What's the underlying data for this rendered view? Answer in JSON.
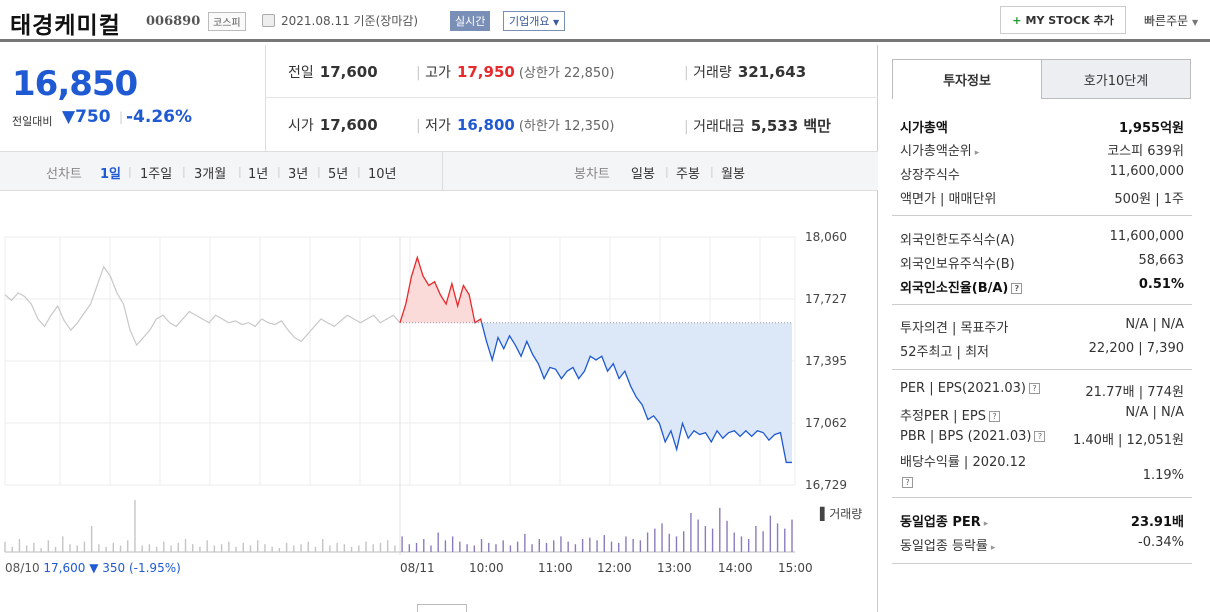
{
  "header": {
    "company": "태경케미컬",
    "code": "006890",
    "market": "코스피",
    "date": "2021.08.11 기준(장마감)",
    "realtime": "실시간",
    "company_info": "기업개요",
    "mystock": "MY STOCK 추가",
    "quick_order": "빠른주문"
  },
  "price": {
    "current": "16,850",
    "change_label": "전일대비",
    "change": "750",
    "change_pct": "-4.26%"
  },
  "stats": {
    "prev_label": "전일",
    "prev": "17,600",
    "high_label": "고가",
    "high": "17,950",
    "upper_limit": "(상한가 22,850)",
    "volume_label": "거래량",
    "volume": "321,643",
    "open_label": "시가",
    "open": "17,600",
    "low_label": "저가",
    "low": "16,800",
    "lower_limit": "(하한가 12,350)",
    "amount_label": "거래대금",
    "amount": "5,533 백만"
  },
  "periods": {
    "line_label": "선차트",
    "line_items": [
      "1일",
      "1주일",
      "3개월",
      "1년",
      "3년",
      "5년",
      "10년"
    ],
    "candle_label": "봉차트",
    "candle_items": [
      "일봉",
      "주봉",
      "월봉"
    ]
  },
  "chart_data": {
    "type": "line",
    "y_ticks": [
      "18,060",
      "17,727",
      "17,395",
      "17,062",
      "16,729"
    ],
    "ylim": [
      16729,
      18060
    ],
    "x_ticks": [
      "08/11",
      "10:00",
      "11:00",
      "12:00",
      "13:00",
      "14:00",
      "15:00"
    ],
    "reference": 17600,
    "volume_label": "거래량",
    "prev_day": {
      "date": "08/10",
      "close": "17,600",
      "change": "▼ 350",
      "change_pct": "(-1.95%)",
      "values": [
        17750,
        17720,
        17760,
        17740,
        17700,
        17620,
        17580,
        17640,
        17690,
        17610,
        17560,
        17600,
        17650,
        17700,
        17800,
        17900,
        17850,
        17760,
        17700,
        17560,
        17480,
        17520,
        17560,
        17620,
        17640,
        17600,
        17580,
        17620,
        17660,
        17640,
        17620,
        17600,
        17640,
        17620,
        17600,
        17610,
        17590,
        17600,
        17580,
        17620,
        17600,
        17590,
        17610,
        17560,
        17520,
        17500,
        17540,
        17580,
        17620,
        17600,
        17580,
        17610,
        17640,
        17620,
        17600,
        17620,
        17640,
        17600,
        17620,
        17640,
        17600
      ]
    },
    "today": {
      "values": [
        17600,
        17700,
        17850,
        17950,
        17850,
        17800,
        17820,
        17750,
        17700,
        17810,
        17690,
        17800,
        17750,
        17600,
        17620,
        17500,
        17400,
        17520,
        17460,
        17530,
        17480,
        17420,
        17500,
        17430,
        17380,
        17300,
        17360,
        17350,
        17300,
        17340,
        17360,
        17300,
        17340,
        17420,
        17400,
        17420,
        17340,
        17380,
        17300,
        17340,
        17260,
        17200,
        17160,
        17080,
        17100,
        17060,
        16960,
        17020,
        16920,
        17060,
        16980,
        17020,
        17000,
        17010,
        16960,
        17020,
        16980,
        17010,
        17020,
        16990,
        17020,
        16990,
        17020,
        17010,
        16970,
        17000,
        17010,
        16850,
        16850
      ]
    },
    "volume": [
      8,
      4,
      10,
      5,
      7,
      3,
      9,
      4,
      12,
      6,
      5,
      8,
      20,
      6,
      4,
      7,
      5,
      9,
      40,
      5,
      6,
      4,
      8,
      5,
      7,
      10,
      6,
      4,
      9,
      5,
      6,
      8,
      4,
      7,
      5,
      9,
      6,
      4,
      3,
      7,
      5,
      6,
      8,
      4,
      10,
      5,
      7,
      6,
      4,
      5,
      8,
      6,
      7,
      9,
      5,
      12,
      6,
      7,
      10,
      5,
      15,
      9,
      12,
      8,
      6,
      5,
      10,
      7,
      6,
      9,
      5,
      8,
      14,
      6,
      10,
      7,
      9,
      12,
      8,
      6,
      10,
      11,
      9,
      13,
      8,
      7,
      12,
      10,
      9,
      15,
      18,
      22,
      14,
      12,
      16,
      30,
      25,
      20,
      18,
      34,
      24,
      15,
      12,
      10,
      20,
      16,
      28,
      22,
      18,
      25
    ]
  },
  "tabs": {
    "invest": "투자정보",
    "hoga": "호가10단계"
  },
  "info": {
    "mcap": {
      "k": "시가총액",
      "v": "1,955억원"
    },
    "mcap_rank": {
      "k": "시가총액순위",
      "v": "코스피 639위"
    },
    "shares": {
      "k": "상장주식수",
      "v": "11,600,000"
    },
    "par": {
      "k": "액면가 | 매매단위",
      "v": "500원 | 1주"
    },
    "foreign_limit": {
      "k": "외국인한도주식수(A)",
      "v": "11,600,000"
    },
    "foreign_hold": {
      "k": "외국인보유주식수(B)",
      "v": "58,663"
    },
    "foreign_ratio": {
      "k": "외국인소진율(B/A)",
      "v": "0.51%"
    },
    "opinion": {
      "k": "투자의견 | 목표주가",
      "v": "N/A | N/A"
    },
    "week52": {
      "k": "52주최고 | 최저",
      "v": "22,200 | 7,390"
    },
    "per": {
      "k": "PER | EPS(2021.03)",
      "v": "21.77배 | 774원"
    },
    "est_per": {
      "k": "추정PER | EPS",
      "v": "N/A | N/A"
    },
    "pbr": {
      "k": "PBR | BPS (2021.03)",
      "v": "1.40배 | 12,051원"
    },
    "dividend": {
      "k": "배당수익률 | 2020.12",
      "v": "1.19%"
    },
    "sector_per": {
      "k": "동일업종 PER",
      "v": "23.91배"
    },
    "sector_chg": {
      "k": "동일업종 등락률",
      "v": "-0.34%"
    }
  },
  "colors": {
    "up": "#e8292b",
    "down": "#1f5ad2",
    "prev_line": "#c8c8c8",
    "volume": "#8b7bbd"
  }
}
